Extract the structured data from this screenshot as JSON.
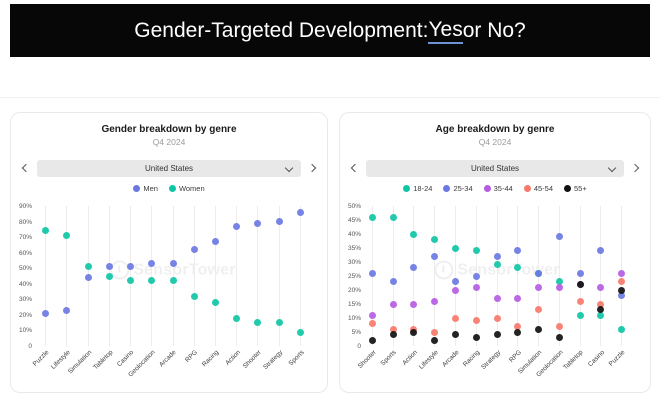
{
  "banner": {
    "prefix": "Gender-Targeted Development: ",
    "underlined": "Yes",
    "suffix": " or No?"
  },
  "cards": [
    {
      "title": "Gender breakdown by genre",
      "subtitle": "Q4 2024",
      "selector": {
        "value": "United States"
      },
      "watermark": "SensorTower"
    },
    {
      "title": "Age breakdown by genre",
      "subtitle": "Q4 2024",
      "selector": {
        "value": "United States"
      },
      "watermark": "SensorTower"
    }
  ],
  "chart_data": [
    {
      "type": "scatter",
      "title": "Gender breakdown by genre",
      "subtitle": "Q4 2024",
      "region": "United States",
      "categories": [
        "Puzzle",
        "Lifestyle",
        "Simulation",
        "Tabletop",
        "Casino",
        "Geolocation",
        "Arcade",
        "RPG",
        "Racing",
        "Action",
        "Shooter",
        "Strategy",
        "Sports"
      ],
      "series": [
        {
          "name": "Men",
          "color": "#6b78e3",
          "values": [
            21,
            23,
            44,
            51,
            51,
            53,
            53,
            62,
            67,
            77,
            79,
            80,
            86
          ]
        },
        {
          "name": "Women",
          "color": "#0fc5a5",
          "values": [
            74,
            71,
            51,
            45,
            42,
            42,
            42,
            32,
            28,
            18,
            15,
            15,
            9
          ]
        }
      ],
      "ylabel": "",
      "xlabel": "",
      "ylim": [
        0,
        90
      ],
      "ytick_step": 10,
      "ytick_format": "percent",
      "grid": "vertical-only",
      "legend_position": "top"
    },
    {
      "type": "scatter",
      "title": "Age breakdown by genre",
      "subtitle": "Q4 2024",
      "region": "United States",
      "categories": [
        "Shooter",
        "Sports",
        "Action",
        "Lifestyle",
        "Arcade",
        "Racing",
        "Strategy",
        "RPG",
        "Simulation",
        "Geolocation",
        "Tabletop",
        "Casino",
        "Puzzle"
      ],
      "series": [
        {
          "name": "18-24",
          "color": "#0fc5a5",
          "values": [
            46,
            46,
            40,
            38,
            35,
            34,
            29,
            28,
            26,
            23,
            11,
            11,
            6
          ]
        },
        {
          "name": "25-34",
          "color": "#6b78e3",
          "values": [
            26,
            23,
            28,
            32,
            23,
            25,
            32,
            34,
            26,
            39,
            26,
            34,
            18
          ]
        },
        {
          "name": "35-44",
          "color": "#b55ce3",
          "values": [
            11,
            15,
            15,
            16,
            20,
            21,
            17,
            17,
            21,
            21,
            22,
            21,
            26
          ]
        },
        {
          "name": "45-54",
          "color": "#f87a6a",
          "values": [
            8,
            6,
            6,
            5,
            10,
            9,
            10,
            7,
            13,
            7,
            16,
            15,
            23
          ]
        },
        {
          "name": "55+",
          "color": "#111111",
          "values": [
            2,
            4,
            5,
            2,
            4,
            3,
            4,
            5,
            6,
            3,
            22,
            13,
            20
          ]
        }
      ],
      "ylabel": "",
      "xlabel": "",
      "ylim": [
        0,
        50
      ],
      "ytick_step": 5,
      "ytick_format": "percent",
      "grid": "vertical-only",
      "legend_position": "top"
    }
  ]
}
